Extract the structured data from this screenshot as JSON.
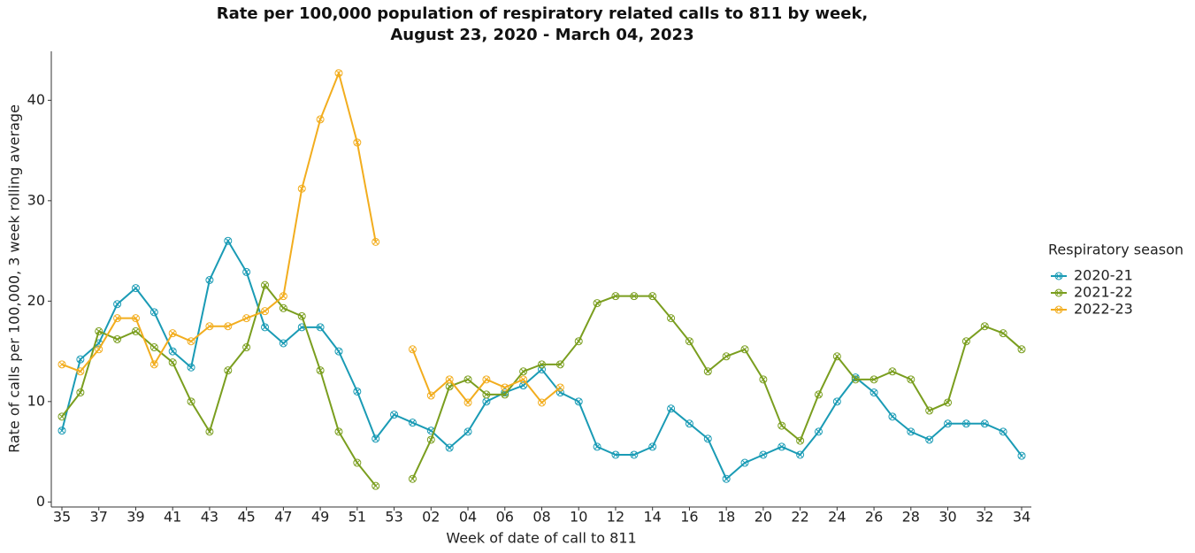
{
  "chart_data": {
    "type": "line",
    "title": "Rate per 100,000 population of respiratory related calls to 811 by week,",
    "subtitle": "August 23, 2020 - March 04, 2023",
    "x_label": "Week of date of call to 811",
    "y_label": "Rate of calls per 100,000, 3 week rolling average",
    "legend_title": "Respiratory season",
    "legend_position": "right",
    "categories": [
      "35",
      null,
      "37",
      null,
      "39",
      null,
      "41",
      null,
      "43",
      null,
      "45",
      null,
      "47",
      null,
      "49",
      null,
      "51",
      null,
      "53",
      null,
      "02",
      null,
      "04",
      null,
      "06",
      null,
      "08",
      null,
      "10",
      null,
      "12",
      null,
      "14",
      null,
      "16",
      null,
      "18",
      null,
      "20",
      null,
      "22",
      null,
      "24",
      null,
      "26",
      null,
      "28",
      null,
      "30",
      null,
      "32",
      null,
      "34"
    ],
    "ylim": [
      -0.5,
      44.7
    ],
    "yticks": [
      0,
      10,
      20,
      30,
      40
    ],
    "grid": false,
    "series": [
      {
        "name": "2020-21",
        "color": "#1a9bb5",
        "values": [
          7.1,
          14.2,
          15.8,
          19.7,
          21.3,
          18.9,
          15.0,
          13.4,
          22.1,
          26.0,
          22.9,
          17.4,
          15.8,
          17.4,
          17.4,
          15.0,
          11.0,
          6.3,
          8.7,
          7.9,
          7.1,
          5.4,
          7.0,
          10.0,
          10.9,
          11.6,
          13.2,
          10.9,
          10.0,
          5.5,
          4.7,
          4.7,
          5.5,
          9.3,
          7.8,
          6.3,
          2.3,
          3.9,
          4.7,
          5.5,
          4.7,
          7.0,
          10.0,
          12.4,
          10.9,
          8.5,
          7.0,
          6.2,
          7.8,
          7.8,
          7.8,
          7.0,
          4.6
        ]
      },
      {
        "name": "2021-22",
        "color": "#7a9e1f",
        "values": [
          8.5,
          10.9,
          17.0,
          16.2,
          17.0,
          15.4,
          13.9,
          10.0,
          7.0,
          13.1,
          15.4,
          21.6,
          19.3,
          18.5,
          13.1,
          7.0,
          3.9,
          1.6,
          null,
          2.3,
          6.2,
          11.5,
          12.2,
          10.7,
          10.7,
          13.0,
          13.7,
          13.7,
          16.0,
          19.8,
          20.5,
          20.5,
          20.5,
          18.3,
          16.0,
          13.0,
          14.5,
          15.2,
          12.2,
          7.6,
          6.1,
          10.7,
          14.5,
          12.2,
          12.2,
          13.0,
          12.2,
          9.1,
          9.9,
          16.0,
          17.5,
          16.8,
          15.2
        ]
      },
      {
        "name": "2022-23",
        "color": "#f2ad1e",
        "values": [
          13.7,
          13.0,
          15.2,
          18.3,
          18.3,
          13.7,
          16.8,
          16.0,
          17.5,
          17.5,
          18.3,
          19.0,
          20.5,
          31.2,
          38.1,
          42.7,
          35.8,
          25.9,
          null,
          15.2,
          10.6,
          12.2,
          9.9,
          12.2,
          11.4,
          12.2,
          9.9,
          11.4,
          null,
          null,
          null,
          null,
          null,
          null,
          null,
          null,
          null,
          null,
          null,
          null,
          null,
          null,
          null,
          null,
          null,
          null,
          null,
          null,
          null,
          null,
          null,
          null,
          null
        ]
      }
    ]
  }
}
